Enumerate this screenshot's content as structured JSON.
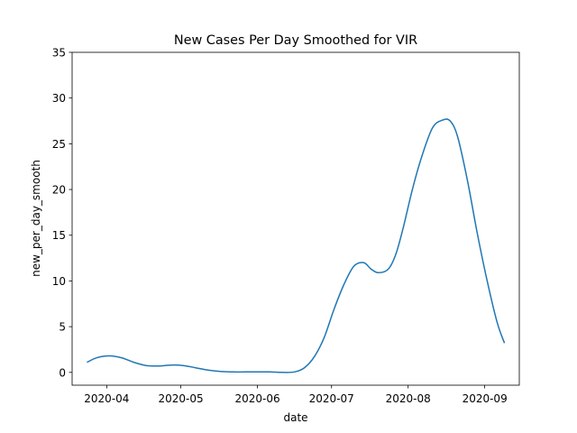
{
  "chart_data": {
    "type": "line",
    "title": "New Cases Per Day Smoothed for VIR",
    "xlabel": "date",
    "ylabel": "new_per_day_smooth",
    "xlim": [
      "2020-03-18",
      "2020-09-15"
    ],
    "ylim": [
      -1.4,
      35
    ],
    "x_ticks": [
      "2020-04-01",
      "2020-05-01",
      "2020-06-01",
      "2020-07-01",
      "2020-08-01",
      "2020-09-01"
    ],
    "x_tick_labels": [
      "2020-04",
      "2020-05",
      "2020-06",
      "2020-07",
      "2020-08",
      "2020-09"
    ],
    "y_ticks": [
      0,
      5,
      10,
      15,
      20,
      25,
      30,
      35
    ],
    "grid": false,
    "line_color": "#1f77b4",
    "series": [
      {
        "x": [
          "2020-03-24",
          "2020-03-28",
          "2020-04-02",
          "2020-04-07",
          "2020-04-12",
          "2020-04-17",
          "2020-04-22",
          "2020-04-27",
          "2020-05-02",
          "2020-05-07",
          "2020-05-12",
          "2020-05-17",
          "2020-05-22",
          "2020-05-27",
          "2020-06-01",
          "2020-06-06",
          "2020-06-11",
          "2020-06-16",
          "2020-06-20",
          "2020-06-24",
          "2020-06-28",
          "2020-07-02",
          "2020-07-06",
          "2020-07-10",
          "2020-07-14",
          "2020-07-17",
          "2020-07-20",
          "2020-07-24",
          "2020-07-27",
          "2020-07-30",
          "2020-08-03",
          "2020-08-07",
          "2020-08-11",
          "2020-08-15",
          "2020-08-18",
          "2020-08-21",
          "2020-08-25",
          "2020-08-29",
          "2020-09-02",
          "2020-09-06",
          "2020-09-09"
        ],
        "y": [
          1.1,
          1.6,
          1.8,
          1.6,
          1.1,
          0.75,
          0.7,
          0.8,
          0.75,
          0.5,
          0.25,
          0.1,
          0.05,
          0.05,
          0.05,
          0.05,
          0.0,
          0.05,
          0.5,
          1.7,
          3.8,
          6.9,
          9.6,
          11.6,
          12.0,
          11.3,
          10.9,
          11.3,
          12.9,
          15.8,
          20.3,
          24.0,
          26.8,
          27.6,
          27.5,
          25.8,
          21.0,
          15.2,
          10.0,
          5.5,
          3.2
        ]
      }
    ]
  }
}
